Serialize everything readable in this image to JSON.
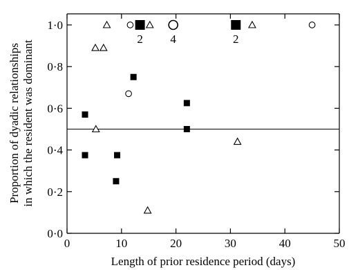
{
  "chart_data": {
    "type": "scatter",
    "xlabel": "Length of prior residence period (days)",
    "ylabel_line1": "Proportion of dyadic relationships",
    "ylabel_line2": "in which the resident was dominant",
    "xlim": [
      0,
      50
    ],
    "ylim": [
      0,
      1
    ],
    "x_ticks": [
      0,
      10,
      20,
      30,
      40,
      50
    ],
    "x_tick_labels": [
      "0",
      "10",
      "20",
      "30",
      "40",
      "50"
    ],
    "y_ticks": [
      0,
      0.2,
      0.4,
      0.6,
      0.8,
      1.0
    ],
    "y_tick_labels": [
      "0·0",
      "0·2",
      "0·4",
      "0·6",
      "0·8",
      "1·0"
    ],
    "reference_line_y": 0.5,
    "series": [
      {
        "marker": "filled-square",
        "points": [
          {
            "x": 3.3,
            "y": 0.57
          },
          {
            "x": 3.3,
            "y": 0.375
          },
          {
            "x": 9.2,
            "y": 0.375
          },
          {
            "x": 9.0,
            "y": 0.25
          },
          {
            "x": 12.2,
            "y": 0.75
          },
          {
            "x": 22.0,
            "y": 0.625
          },
          {
            "x": 22.0,
            "y": 0.5
          },
          {
            "x": 13.4,
            "y": 1.0
          },
          {
            "x": 31.0,
            "y": 1.0
          }
        ]
      },
      {
        "marker": "open-triangle",
        "points": [
          {
            "x": 5.3,
            "y": 0.5
          },
          {
            "x": 5.2,
            "y": 0.89
          },
          {
            "x": 6.7,
            "y": 0.89
          },
          {
            "x": 7.3,
            "y": 1.0
          },
          {
            "x": 15.2,
            "y": 1.0
          },
          {
            "x": 14.8,
            "y": 0.11
          },
          {
            "x": 31.3,
            "y": 0.44
          },
          {
            "x": 34.0,
            "y": 1.0
          }
        ]
      },
      {
        "marker": "open-circle",
        "points": [
          {
            "x": 11.6,
            "y": 1.0
          },
          {
            "x": 11.3,
            "y": 0.67
          },
          {
            "x": 19.5,
            "y": 1.0
          },
          {
            "x": 45.0,
            "y": 1.0
          }
        ]
      }
    ],
    "annotations": [
      {
        "text": "2",
        "x": 13.4,
        "y": 1.0
      },
      {
        "text": "4",
        "x": 19.5,
        "y": 1.0
      },
      {
        "text": "2",
        "x": 31.0,
        "y": 1.0
      }
    ]
  },
  "large_markers": [
    "13.4,1",
    "19.5,1",
    "31,1"
  ]
}
